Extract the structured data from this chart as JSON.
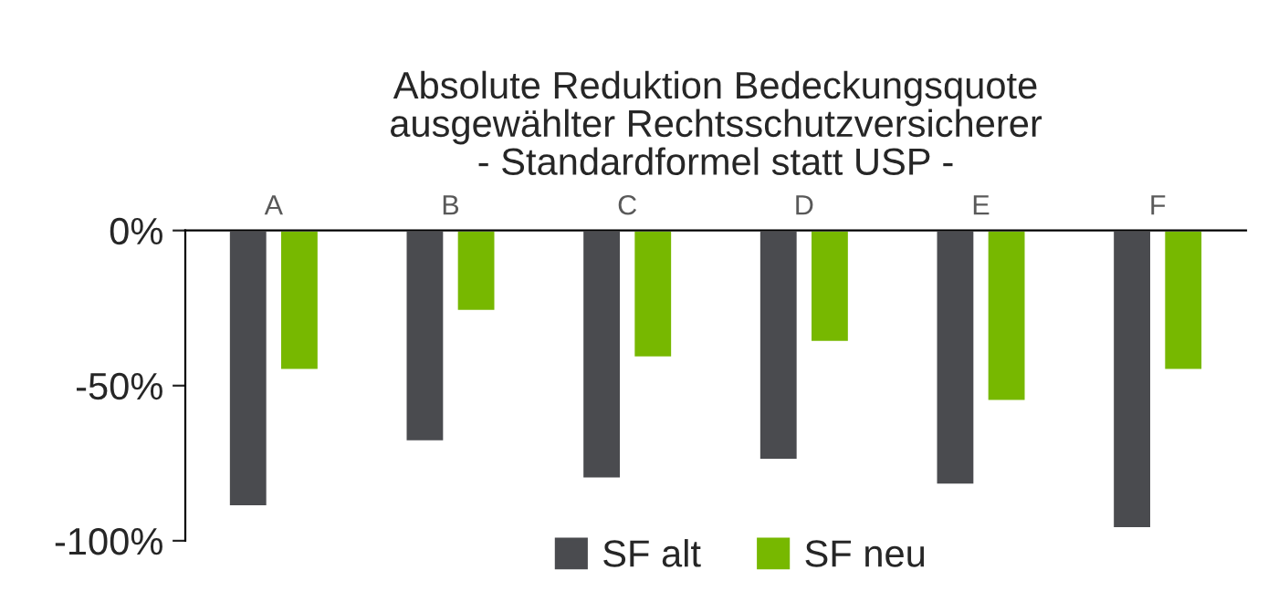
{
  "chart_data": {
    "type": "bar",
    "title": "Absolute Reduktion Bedeckungsquote\nausgewählter Rechtsschutzversicherer\n- Standardformel statt USP -",
    "categories": [
      "A",
      "B",
      "C",
      "D",
      "E",
      "F"
    ],
    "series": [
      {
        "name": "SF alt",
        "color": "#4a4b4f",
        "values": [
          -89,
          -68,
          -80,
          -74,
          -82,
          -96
        ]
      },
      {
        "name": "SF neu",
        "color": "#77b800",
        "values": [
          -45,
          -26,
          -41,
          -36,
          -55,
          -45
        ]
      }
    ],
    "ylim": [
      -100,
      0
    ],
    "yticks": [
      {
        "value": -100,
        "label": "-100%"
      },
      {
        "value": -50,
        "label": "-50%"
      },
      {
        "value": 0,
        "label": "0%"
      }
    ],
    "grid": false,
    "legend": "bottom"
  }
}
